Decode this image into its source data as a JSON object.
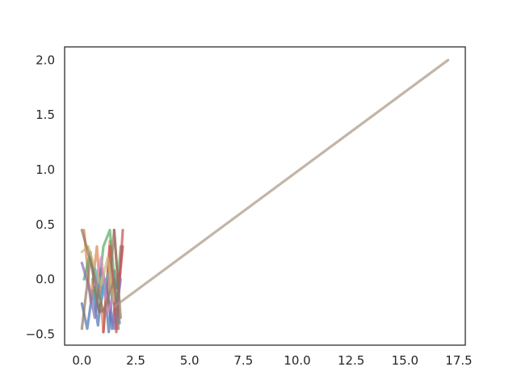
{
  "chart_data": {
    "type": "line",
    "title": "",
    "xlabel": "",
    "ylabel": "",
    "xlim": [
      -0.8,
      17.8
    ],
    "ylim": [
      -0.6,
      2.12
    ],
    "x_ticks": [
      0.0,
      2.5,
      5.0,
      7.5,
      10.0,
      12.5,
      15.0,
      17.5
    ],
    "x_tick_labels": [
      "0.0",
      "2.5",
      "5.0",
      "7.5",
      "10.0",
      "12.5",
      "15.0",
      "17.5"
    ],
    "y_ticks": [
      -0.5,
      0.0,
      0.5,
      1.0,
      1.5,
      2.0
    ],
    "y_tick_labels": [
      "−0.5",
      "0.0",
      "0.5",
      "1.0",
      "1.5",
      "2.0"
    ],
    "grid": false,
    "legend": "none",
    "series": [
      {
        "color": "#4c72b0",
        "x": [
          0.0,
          0.25,
          0.5,
          0.75,
          1.0,
          1.25,
          1.5,
          1.75
        ],
        "y": [
          -0.22,
          -0.45,
          -0.1,
          -0.42,
          0.05,
          -0.48,
          0.08,
          -0.4
        ]
      },
      {
        "color": "#4c72b0",
        "x": [
          0.5,
          0.8,
          1.1,
          1.4,
          1.7
        ],
        "y": [
          0.0,
          -0.3,
          0.0,
          -0.45,
          0.05
        ]
      },
      {
        "color": "#dd8452",
        "x": [
          0.1,
          0.4,
          0.7,
          1.0,
          1.3,
          1.6
        ],
        "y": [
          0.45,
          -0.2,
          0.3,
          -0.48,
          0.35,
          -0.45
        ]
      },
      {
        "color": "#55a868",
        "x": [
          0.1,
          0.4,
          0.7,
          1.0,
          1.3,
          1.6,
          1.8
        ],
        "y": [
          0.0,
          0.25,
          -0.25,
          0.3,
          0.45,
          -0.2,
          0.3
        ]
      },
      {
        "color": "#c44e52",
        "x": [
          1.0,
          1.3,
          1.6,
          1.9
        ],
        "y": [
          -0.48,
          0.3,
          -0.48,
          0.45
        ]
      },
      {
        "color": "#c44e52",
        "x": [
          1.5,
          1.7,
          1.9
        ],
        "y": [
          0.45,
          -0.1,
          0.3
        ]
      },
      {
        "color": "#8172b3",
        "x": [
          0.0,
          0.3,
          0.6,
          0.9,
          1.2,
          1.5,
          1.8
        ],
        "y": [
          0.15,
          -0.05,
          -0.35,
          0.1,
          -0.15,
          -0.45,
          0.0
        ]
      },
      {
        "color": "#937860",
        "x": [
          0.0,
          0.4,
          0.8,
          1.2,
          1.5,
          1.8
        ],
        "y": [
          -0.45,
          0.2,
          -0.3,
          -0.25,
          0.45,
          -0.35
        ]
      },
      {
        "color": "#da8bc3",
        "x": [
          0.6,
          0.9,
          1.2,
          1.6
        ],
        "y": [
          -0.05,
          0.2,
          -0.3,
          -0.1
        ]
      },
      {
        "color": "#ccb974",
        "x": [
          0.0,
          0.3,
          0.6,
          0.9,
          1.2,
          1.5
        ],
        "y": [
          0.25,
          0.3,
          0.1,
          -0.05,
          0.2,
          -0.2
        ]
      },
      {
        "color": "#64b5cd",
        "x": [
          0.6,
          0.9,
          1.2
        ],
        "y": [
          0.1,
          -0.2,
          0.05
        ]
      },
      {
        "color": "#937860",
        "x": [
          0.0,
          0.5,
          1.0,
          1.5,
          1.7
        ],
        "y": [
          0.45,
          0.1,
          -0.3,
          0.0,
          -0.45
        ]
      },
      {
        "color": "#a89682",
        "x": [
          1.5,
          17.0
        ],
        "y": [
          -0.25,
          2.0
        ]
      }
    ]
  }
}
